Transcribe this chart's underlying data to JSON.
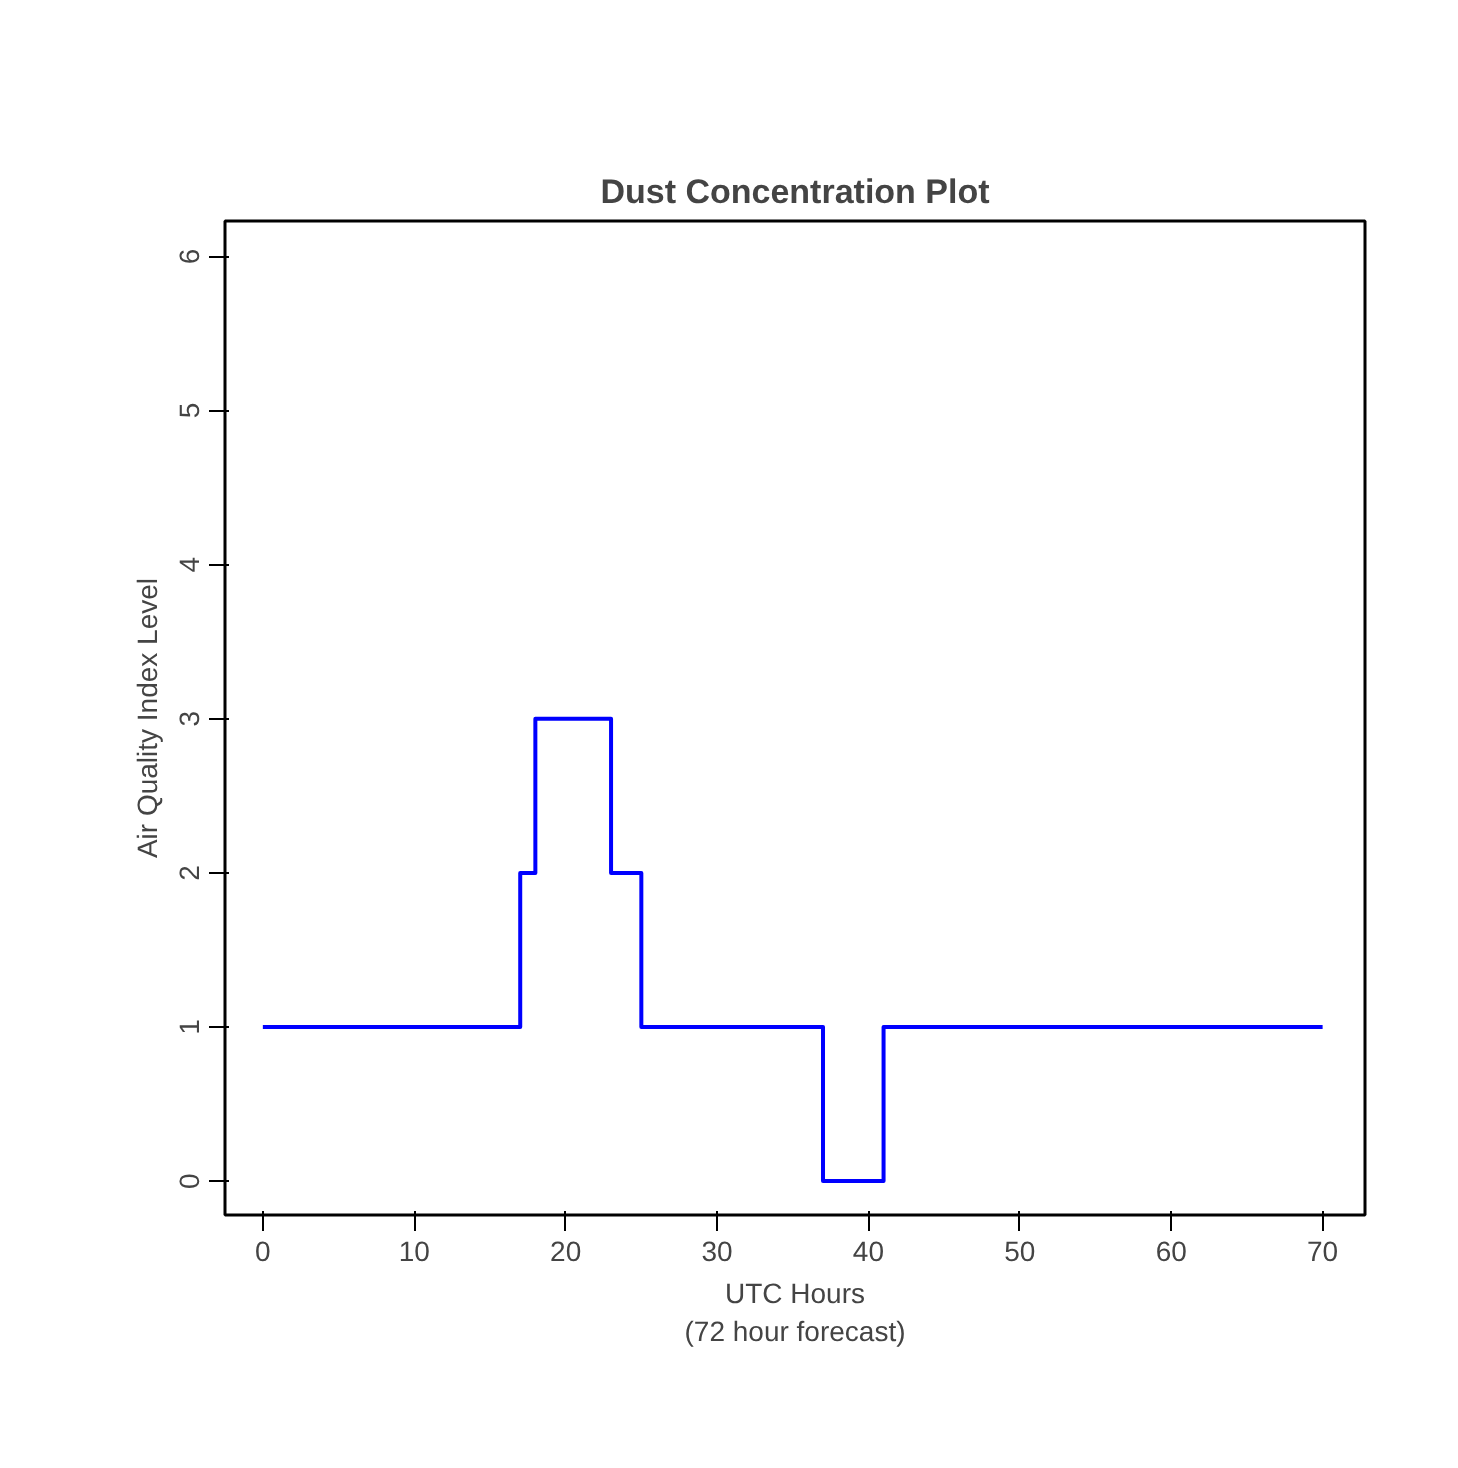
{
  "chart_data": {
    "type": "step",
    "title": "Dust Concentration Plot",
    "xlabel": "UTC Hours\n(72 hour forecast)",
    "ylabel": "Air Quality Index Level",
    "x": [
      0,
      17,
      18,
      23,
      25,
      37,
      41,
      70
    ],
    "series": [
      {
        "color": "#0000ff",
        "values": [
          1,
          2,
          3,
          2,
          1,
          0,
          1,
          1
        ]
      }
    ],
    "xlim": [
      -2.5,
      72.8
    ],
    "ylim": [
      -0.22,
      6.23
    ],
    "xticks": [
      0,
      10,
      20,
      30,
      40,
      50,
      60,
      70
    ],
    "yticks": [
      0,
      1,
      2,
      3,
      4,
      5,
      6
    ],
    "grid": false
  }
}
